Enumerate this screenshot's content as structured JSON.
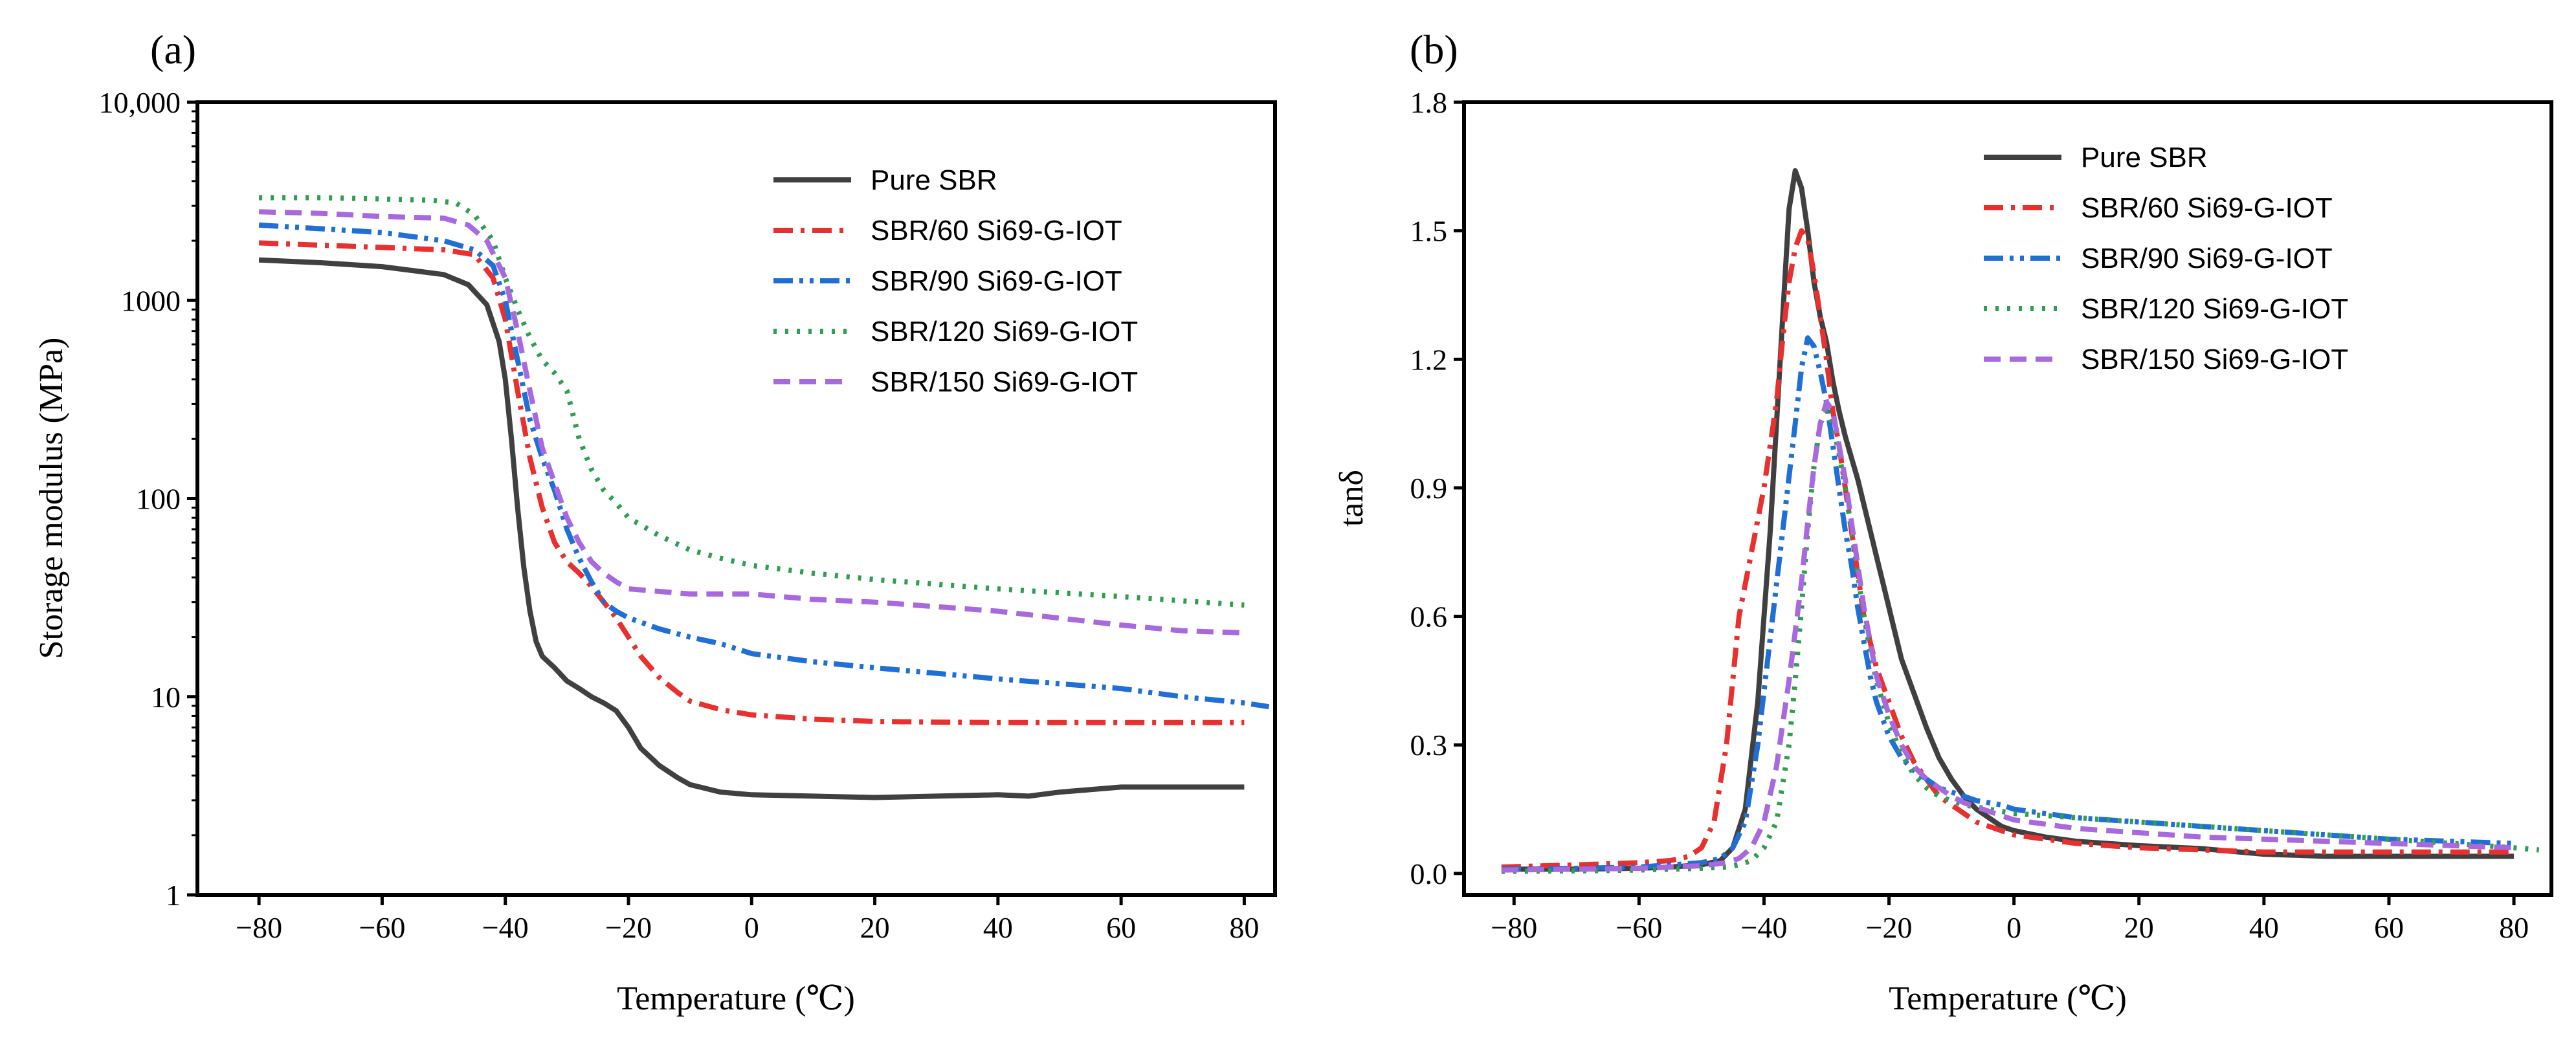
{
  "chart_data": [
    {
      "panel": "(a)",
      "type": "line",
      "xlabel": "Temperature (℃)",
      "ylabel": "Storage modulus (MPa)",
      "yscale": "log",
      "xlim": [
        -90,
        85
      ],
      "ylim": [
        1,
        10000
      ],
      "xticks": [
        -80,
        -60,
        -40,
        -20,
        0,
        20,
        40,
        60,
        80
      ],
      "xtick_labels": [
        "−80",
        "−60",
        "−40",
        "−20",
        "0",
        "20",
        "40",
        "60",
        "80"
      ],
      "yticks": [
        1,
        10,
        100,
        1000,
        10000
      ],
      "ytick_labels": [
        "1",
        "10",
        "100",
        "1000",
        "10,000"
      ],
      "legend_position": "top-right",
      "series": [
        {
          "name": "Pure SBR",
          "color": "#404040",
          "dash": "solid",
          "x": [
            -80,
            -70,
            -60,
            -50,
            -46,
            -43,
            -41,
            -40,
            -39,
            -38,
            -37,
            -36,
            -35,
            -34,
            -32,
            -30,
            -28,
            -26,
            -24,
            -22,
            -20,
            -18,
            -15,
            -12,
            -10,
            -5,
            0,
            10,
            20,
            30,
            40,
            45,
            50,
            60,
            70,
            80
          ],
          "y": [
            1600,
            1550,
            1480,
            1350,
            1200,
            950,
            620,
            400,
            200,
            90,
            45,
            27,
            19,
            16,
            14,
            12,
            11,
            10,
            9.3,
            8.5,
            7,
            5.5,
            4.5,
            3.9,
            3.6,
            3.3,
            3.2,
            3.15,
            3.1,
            3.15,
            3.2,
            3.15,
            3.3,
            3.5,
            3.5,
            3.5
          ]
        },
        {
          "name": "SBR/60 Si69-G-IOT",
          "color": "#e8312f",
          "dash": "dashdot",
          "x": [
            -80,
            -70,
            -60,
            -50,
            -45,
            -42,
            -40,
            -38,
            -36,
            -34,
            -32,
            -30,
            -28,
            -26,
            -24,
            -22,
            -20,
            -18,
            -15,
            -12,
            -10,
            -5,
            0,
            10,
            20,
            40,
            60,
            80
          ],
          "y": [
            1950,
            1900,
            1850,
            1800,
            1700,
            1300,
            800,
            350,
            160,
            90,
            60,
            48,
            42,
            36,
            30,
            25,
            20,
            16,
            12.5,
            10.5,
            9.5,
            8.6,
            8.1,
            7.7,
            7.5,
            7.4,
            7.4,
            7.4
          ]
        },
        {
          "name": "SBR/90 Si69-G-IOT",
          "color": "#1f6fd6",
          "dash": "dashdotdot",
          "x": [
            -80,
            -70,
            -60,
            -50,
            -45,
            -42,
            -40,
            -38,
            -36,
            -34,
            -32,
            -30,
            -28,
            -26,
            -24,
            -22,
            -20,
            -15,
            -10,
            -5,
            0,
            10,
            20,
            40,
            60,
            70,
            80,
            84
          ],
          "y": [
            2400,
            2300,
            2200,
            2000,
            1800,
            1500,
            1000,
            500,
            250,
            160,
            110,
            70,
            50,
            38,
            30,
            27,
            25,
            22,
            20,
            18.5,
            16.5,
            15,
            14,
            12.3,
            11,
            10,
            9.3,
            8.9
          ]
        },
        {
          "name": "SBR/120 Si69-G-IOT",
          "color": "#2e9e4f",
          "dash": "dot",
          "x": [
            -80,
            -70,
            -60,
            -52,
            -48,
            -45,
            -42,
            -40,
            -38,
            -36,
            -34,
            -32,
            -30,
            -28,
            -26,
            -24,
            -22,
            -20,
            -15,
            -10,
            -5,
            0,
            10,
            20,
            40,
            60,
            80
          ],
          "y": [
            3300,
            3300,
            3250,
            3200,
            3100,
            2700,
            2000,
            1300,
            900,
            650,
            500,
            430,
            350,
            200,
            140,
            110,
            95,
            80,
            65,
            55,
            50,
            46,
            42,
            39,
            35,
            32,
            29
          ]
        },
        {
          "name": "SBR/150 Si69-G-IOT",
          "color": "#a969de",
          "dash": "dashed",
          "x": [
            -80,
            -70,
            -60,
            -50,
            -46,
            -43,
            -40,
            -38,
            -36,
            -34,
            -32,
            -30,
            -28,
            -26,
            -24,
            -22,
            -20,
            -15,
            -10,
            -5,
            0,
            10,
            20,
            40,
            60,
            70,
            80
          ],
          "y": [
            2800,
            2750,
            2650,
            2600,
            2400,
            2000,
            1300,
            700,
            350,
            180,
            120,
            80,
            60,
            48,
            42,
            38,
            35,
            34,
            33,
            33,
            33,
            31,
            30,
            27,
            23,
            21.5,
            21
          ]
        }
      ]
    },
    {
      "panel": "(b)",
      "type": "line",
      "xlabel": "Temperature (℃)",
      "ylabel": "tanδ",
      "xlim": [
        -88,
        86
      ],
      "ylim": [
        -0.05,
        1.8
      ],
      "xticks": [
        -80,
        -60,
        -40,
        -20,
        0,
        20,
        40,
        60,
        80
      ],
      "xtick_labels": [
        "−80",
        "−60",
        "−40",
        "−20",
        "0",
        "20",
        "40",
        "60",
        "80"
      ],
      "yticks": [
        0.0,
        0.3,
        0.6,
        0.9,
        1.2,
        1.5,
        1.8
      ],
      "ytick_labels": [
        "0.0",
        "0.3",
        "0.6",
        "0.9",
        "1.2",
        "1.5",
        "1.8"
      ],
      "legend_position": "top-right",
      "series": [
        {
          "name": "Pure SBR",
          "color": "#404040",
          "dash": "solid",
          "x": [
            -82,
            -70,
            -60,
            -55,
            -50,
            -47,
            -45,
            -43,
            -41,
            -39,
            -37,
            -36,
            -35,
            -34,
            -33,
            -32,
            -31,
            -30,
            -29,
            -28,
            -27,
            -26,
            -25,
            -24,
            -23,
            -22,
            -21,
            -20,
            -19,
            -18,
            -16,
            -14,
            -12,
            -10,
            -8,
            -6,
            -4,
            -2,
            0,
            5,
            10,
            20,
            30,
            40,
            50,
            60,
            70,
            80
          ],
          "y": [
            0.01,
            0.01,
            0.012,
            0.015,
            0.02,
            0.03,
            0.06,
            0.15,
            0.4,
            0.8,
            1.3,
            1.55,
            1.64,
            1.6,
            1.5,
            1.38,
            1.3,
            1.24,
            1.15,
            1.08,
            1.02,
            0.97,
            0.92,
            0.86,
            0.8,
            0.74,
            0.68,
            0.62,
            0.56,
            0.5,
            0.42,
            0.34,
            0.27,
            0.22,
            0.18,
            0.15,
            0.13,
            0.11,
            0.1,
            0.085,
            0.075,
            0.065,
            0.058,
            0.045,
            0.04,
            0.04,
            0.04,
            0.04
          ]
        },
        {
          "name": "SBR/60 Si69-G-IOT",
          "color": "#e8312f",
          "dash": "dashdot",
          "x": [
            -82,
            -70,
            -60,
            -55,
            -52,
            -50,
            -48,
            -46,
            -44,
            -42,
            -40,
            -38,
            -37,
            -36,
            -35,
            -34,
            -33,
            -32,
            -31,
            -30,
            -29,
            -28,
            -27,
            -26,
            -25,
            -24,
            -22,
            -20,
            -18,
            -16,
            -14,
            -12,
            -10,
            -8,
            -6,
            -4,
            -2,
            0,
            5,
            10,
            20,
            30,
            40,
            50,
            60,
            70,
            80
          ],
          "y": [
            0.015,
            0.02,
            0.025,
            0.03,
            0.04,
            0.06,
            0.12,
            0.3,
            0.6,
            0.75,
            0.9,
            1.1,
            1.25,
            1.38,
            1.46,
            1.5,
            1.48,
            1.4,
            1.3,
            1.2,
            1.08,
            1.0,
            0.9,
            0.8,
            0.7,
            0.6,
            0.48,
            0.4,
            0.32,
            0.26,
            0.22,
            0.18,
            0.16,
            0.14,
            0.12,
            0.11,
            0.1,
            0.09,
            0.08,
            0.07,
            0.06,
            0.055,
            0.05,
            0.05,
            0.05,
            0.05,
            0.05
          ]
        },
        {
          "name": "SBR/90 Si69-G-IOT",
          "color": "#1f6fd6",
          "dash": "dashdotdot",
          "x": [
            -82,
            -70,
            -60,
            -55,
            -50,
            -47,
            -45,
            -43,
            -41,
            -39,
            -37,
            -35,
            -34,
            -33,
            -32,
            -31,
            -30,
            -29,
            -28,
            -27,
            -26,
            -25,
            -24,
            -23,
            -22,
            -20,
            -18,
            -16,
            -14,
            -12,
            -10,
            -8,
            -6,
            -4,
            -2,
            0,
            5,
            10,
            20,
            30,
            40,
            50,
            60,
            70,
            80
          ],
          "y": [
            0.01,
            0.012,
            0.015,
            0.02,
            0.025,
            0.035,
            0.06,
            0.12,
            0.3,
            0.55,
            0.8,
            1.05,
            1.18,
            1.25,
            1.23,
            1.17,
            1.1,
            1.0,
            0.9,
            0.8,
            0.72,
            0.62,
            0.54,
            0.46,
            0.4,
            0.32,
            0.27,
            0.24,
            0.22,
            0.2,
            0.19,
            0.18,
            0.17,
            0.165,
            0.16,
            0.15,
            0.14,
            0.13,
            0.12,
            0.11,
            0.1,
            0.09,
            0.08,
            0.075,
            0.07
          ]
        },
        {
          "name": "SBR/120 Si69-G-IOT",
          "color": "#2e9e4f",
          "dash": "dot",
          "x": [
            -82,
            -70,
            -60,
            -55,
            -50,
            -46,
            -44,
            -42,
            -40,
            -38,
            -36,
            -35,
            -34,
            -33,
            -32,
            -31,
            -30,
            -29,
            -28,
            -27,
            -26,
            -25,
            -24,
            -23,
            -22,
            -20,
            -18,
            -16,
            -14,
            -12,
            -10,
            -8,
            -6,
            -4,
            -2,
            0,
            5,
            10,
            20,
            30,
            40,
            50,
            60,
            70,
            80,
            84
          ],
          "y": [
            0.005,
            0.006,
            0.008,
            0.01,
            0.012,
            0.015,
            0.02,
            0.03,
            0.06,
            0.12,
            0.3,
            0.45,
            0.62,
            0.8,
            0.95,
            1.05,
            1.08,
            1.05,
            0.98,
            0.9,
            0.8,
            0.7,
            0.6,
            0.52,
            0.45,
            0.35,
            0.28,
            0.23,
            0.2,
            0.18,
            0.17,
            0.16,
            0.155,
            0.15,
            0.145,
            0.14,
            0.135,
            0.13,
            0.12,
            0.11,
            0.1,
            0.09,
            0.08,
            0.07,
            0.06,
            0.055
          ]
        },
        {
          "name": "SBR/150 Si69-G-IOT",
          "color": "#a969de",
          "dash": "dashed",
          "x": [
            -82,
            -70,
            -60,
            -55,
            -50,
            -46,
            -44,
            -42,
            -40,
            -38,
            -36,
            -34,
            -33,
            -32,
            -31,
            -30,
            -29,
            -28,
            -27,
            -26,
            -25,
            -24,
            -23,
            -22,
            -20,
            -18,
            -16,
            -14,
            -12,
            -10,
            -8,
            -6,
            -4,
            -2,
            0,
            5,
            10,
            20,
            30,
            40,
            50,
            60,
            70,
            80
          ],
          "y": [
            0.008,
            0.01,
            0.012,
            0.015,
            0.018,
            0.025,
            0.035,
            0.06,
            0.12,
            0.25,
            0.45,
            0.68,
            0.82,
            0.95,
            1.05,
            1.1,
            1.08,
            1.0,
            0.92,
            0.82,
            0.72,
            0.62,
            0.54,
            0.46,
            0.37,
            0.3,
            0.25,
            0.22,
            0.2,
            0.18,
            0.165,
            0.155,
            0.145,
            0.135,
            0.125,
            0.115,
            0.105,
            0.095,
            0.085,
            0.08,
            0.075,
            0.07,
            0.065,
            0.06
          ]
        }
      ]
    }
  ]
}
